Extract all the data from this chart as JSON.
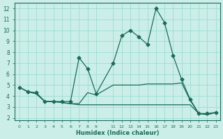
{
  "title": "",
  "xlabel": "Humidex (Indice chaleur)",
  "bg_color": "#cceee8",
  "grid_color": "#99ddd4",
  "line_color": "#1a6b5a",
  "xlim": [
    -0.5,
    23.5
  ],
  "ylim": [
    1.8,
    12.5
  ],
  "yticks": [
    2,
    3,
    4,
    5,
    6,
    7,
    8,
    9,
    10,
    11,
    12
  ],
  "xticks": [
    0,
    1,
    2,
    3,
    4,
    5,
    6,
    7,
    8,
    9,
    11,
    12,
    13,
    14,
    15,
    16,
    17,
    18,
    19,
    20,
    21,
    22,
    23
  ],
  "xtick_labels": [
    "0",
    "1",
    "2",
    "3",
    "4",
    "5",
    "6",
    "7",
    "8",
    "9",
    "11",
    "12",
    "13",
    "14",
    "15",
    "16",
    "17",
    "18",
    "19",
    "20",
    "21",
    "22",
    "23"
  ],
  "series": [
    {
      "x": [
        0,
        1,
        2,
        3,
        4,
        5,
        6,
        7,
        8,
        9,
        11,
        12,
        13,
        14,
        15,
        16,
        17,
        18,
        19,
        20,
        21,
        22,
        23
      ],
      "y": [
        4.8,
        4.4,
        4.3,
        3.5,
        3.5,
        3.5,
        3.5,
        7.5,
        6.5,
        4.2,
        7.0,
        9.5,
        10.0,
        9.4,
        8.7,
        12.0,
        10.7,
        7.7,
        5.5,
        3.7,
        2.4,
        2.4,
        2.5
      ],
      "marker": "D",
      "markersize": 2.5
    },
    {
      "x": [
        0,
        1,
        2,
        3,
        4,
        5,
        6,
        7,
        8,
        9,
        11,
        12,
        13,
        14,
        15,
        16,
        17,
        18,
        19,
        20,
        21,
        22,
        23
      ],
      "y": [
        4.8,
        4.4,
        4.2,
        3.5,
        3.5,
        3.4,
        3.3,
        3.3,
        4.3,
        4.1,
        5.0,
        5.0,
        5.0,
        5.0,
        5.1,
        5.1,
        5.1,
        5.1,
        5.2,
        3.6,
        2.4,
        2.3,
        2.5
      ],
      "marker": null,
      "markersize": 0
    },
    {
      "x": [
        0,
        1,
        2,
        3,
        4,
        5,
        6,
        7,
        8,
        9,
        11,
        12,
        13,
        14,
        15,
        16,
        17,
        18,
        19,
        20,
        21,
        22,
        23
      ],
      "y": [
        4.8,
        4.4,
        4.2,
        3.5,
        3.5,
        3.4,
        3.3,
        3.2,
        3.2,
        3.2,
        3.2,
        3.2,
        3.2,
        3.2,
        3.2,
        3.2,
        3.2,
        3.2,
        3.2,
        3.2,
        2.4,
        2.3,
        2.5
      ],
      "marker": null,
      "markersize": 0
    }
  ]
}
